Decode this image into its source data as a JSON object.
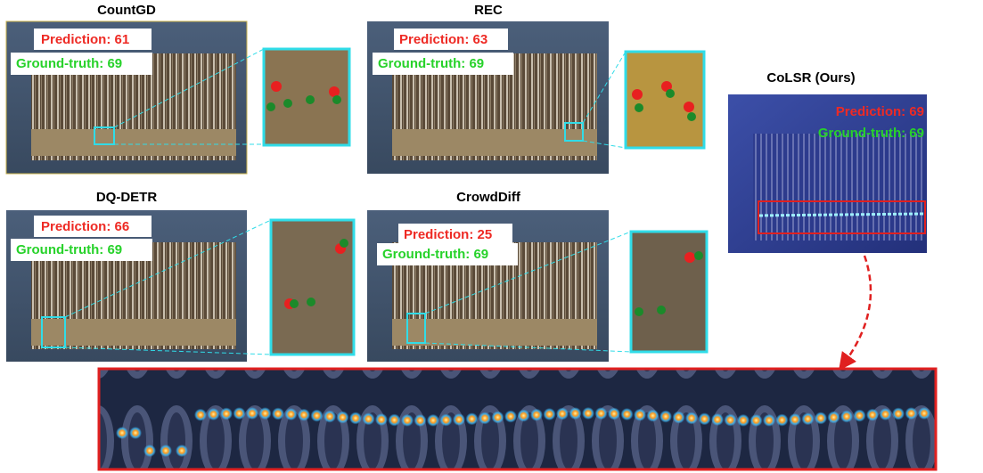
{
  "panels": [
    {
      "title": "CountGD",
      "prediction": "Prediction: 61",
      "ground_truth": "Ground-truth: 69"
    },
    {
      "title": "REC",
      "prediction": "Prediction: 63",
      "ground_truth": "Ground-truth: 69"
    },
    {
      "title": "DQ-DETR",
      "prediction": "Prediction: 66",
      "ground_truth": "Ground-truth: 69"
    },
    {
      "title": "CrowdDiff",
      "prediction": "Prediction: 25",
      "ground_truth": "Ground-truth: 69"
    }
  ],
  "highlight": {
    "title": "CoLSR (Ours)",
    "prediction": "Prediction: 69",
    "ground_truth": "Ground-truth: 69"
  }
}
